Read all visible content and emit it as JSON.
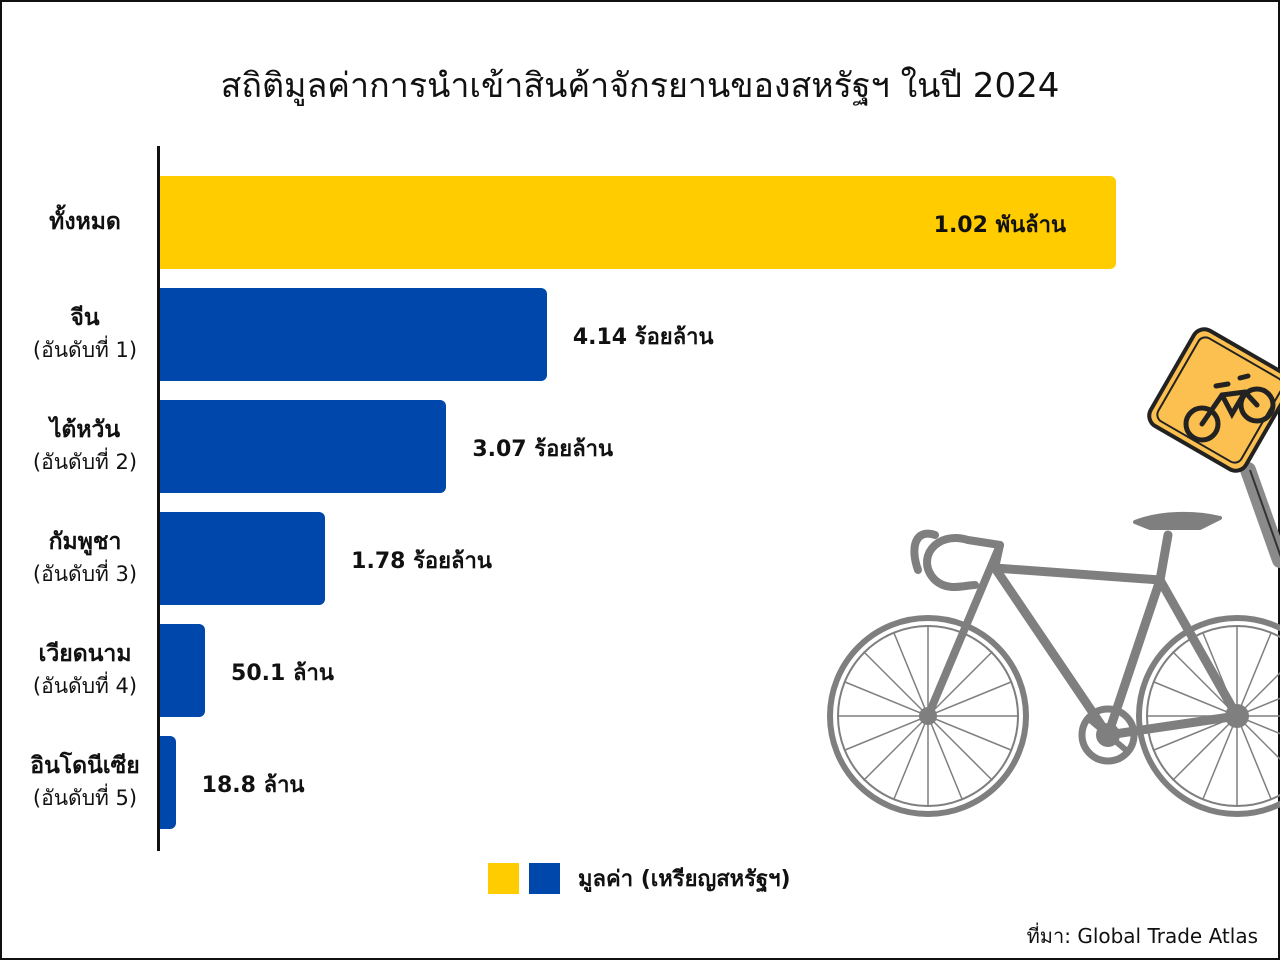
{
  "chart_data": {
    "type": "bar",
    "orientation": "horizontal",
    "title": "สถิติมูลค่าการนำเข้าสินค้าจักรยานของสหรัฐฯ ในปี 2024",
    "categories": [
      "ทั้งหมด",
      "จีน",
      "ไต้หวัน",
      "กัมพูชา",
      "เวียดนาม",
      "อินโดนีเซีย"
    ],
    "rank_labels": [
      "",
      "(อันดับที่ 1)",
      "(อันดับที่ 2)",
      "(อันดับที่ 3)",
      "(อันดับที่ 4)",
      "(อันดับที่ 5)"
    ],
    "values": [
      1020000000,
      414000000,
      307000000,
      178000000,
      50100000,
      18800000
    ],
    "value_labels": [
      "1.02 พันล้าน",
      "4.14 ร้อยล้าน",
      "3.07 ร้อยล้าน",
      "1.78 ร้อยล้าน",
      "50.1 ล้าน",
      "18.8 ล้าน"
    ],
    "bar_colors": [
      "#FFCC00",
      "#0047AB",
      "#0047AB",
      "#0047AB",
      "#0047AB",
      "#0047AB"
    ],
    "legend": {
      "label": "มูลค่า (เหรียญสหรัฐฯ)",
      "colors": [
        "#FFCC00",
        "#0047AB"
      ],
      "placement": "bottom"
    },
    "xlim": [
      0,
      1020000000
    ],
    "grid": false
  },
  "source": "ที่มา: Global Trade Atlas",
  "decoration": {
    "icons": [
      "bicycle-icon",
      "bicycle-road-sign-icon"
    ],
    "sign_color": "#FBC04F",
    "bicycle_color": "#7F7F7F"
  }
}
